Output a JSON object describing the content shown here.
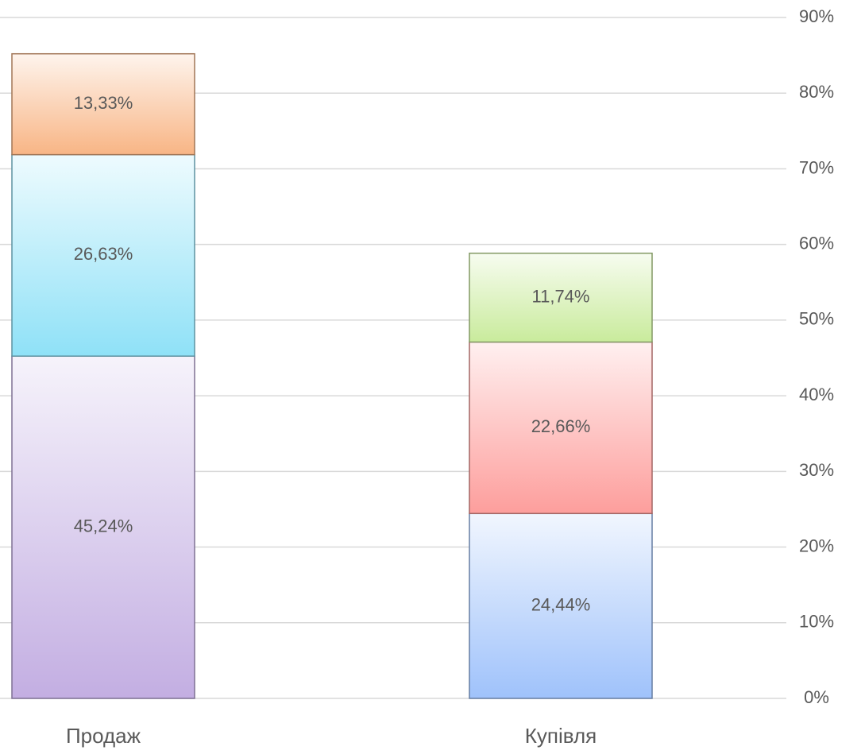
{
  "chart_data": {
    "type": "stacked_bar",
    "categories": [
      "Продаж",
      "Купівля"
    ],
    "series": [
      {
        "color": "#c3aee2",
        "values": [
          45.24,
          null
        ],
        "value_labels": [
          "45,24%",
          null
        ]
      },
      {
        "color": "#8fe1f7",
        "values": [
          26.63,
          null
        ],
        "value_labels": [
          "26,63%",
          null
        ]
      },
      {
        "color": "#f8b585",
        "values": [
          13.33,
          null
        ],
        "value_labels": [
          "13,33%",
          null
        ]
      },
      {
        "color": "#9fc2fb",
        "values": [
          null,
          24.44
        ],
        "value_labels": [
          null,
          "24,44%"
        ]
      },
      {
        "color": "#fd9e9c",
        "values": [
          null,
          22.66
        ],
        "value_labels": [
          null,
          "22,66%"
        ]
      },
      {
        "color": "#c9eb9c",
        "values": [
          null,
          11.74
        ],
        "value_labels": [
          null,
          "11,74%"
        ]
      }
    ],
    "ylim": [
      0,
      90
    ],
    "yticks": [
      {
        "value": 0,
        "label": "0%"
      },
      {
        "value": 10,
        "label": "10%"
      },
      {
        "value": 20,
        "label": "20%"
      },
      {
        "value": 30,
        "label": "30%"
      },
      {
        "value": 40,
        "label": "40%"
      },
      {
        "value": 50,
        "label": "50%"
      },
      {
        "value": 60,
        "label": "60%"
      },
      {
        "value": 70,
        "label": "70%"
      },
      {
        "value": 80,
        "label": "80%"
      },
      {
        "value": 90,
        "label": "90%"
      }
    ],
    "grid": true,
    "y_axis_side": "right"
  }
}
